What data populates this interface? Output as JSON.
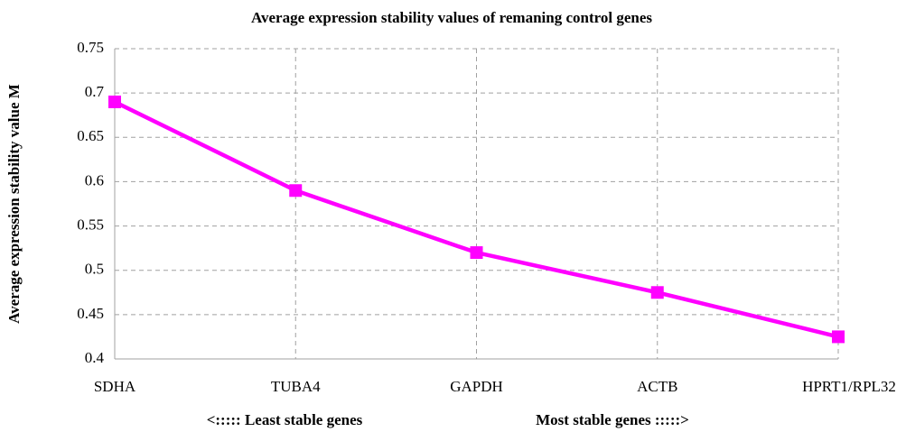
{
  "chart_data": {
    "type": "line",
    "title": "Average expression stability values of remaning control genes",
    "ylabel": "Average expression stability value M",
    "xlabel_left": "<::::: Least stable genes",
    "xlabel_right": "Most stable genes :::::>",
    "categories": [
      "SDHA",
      "TUBA4",
      "GAPDH",
      "ACTB",
      "HPRT1/RPL32"
    ],
    "series": [
      {
        "color": "#ff00ff",
        "values": [
          0.69,
          0.59,
          0.52,
          0.475,
          0.425
        ]
      }
    ],
    "ylim": [
      0.4,
      0.75
    ],
    "yticks": [
      0.4,
      0.45,
      0.5,
      0.55,
      0.6,
      0.65,
      0.7,
      0.75
    ],
    "grid": true
  }
}
